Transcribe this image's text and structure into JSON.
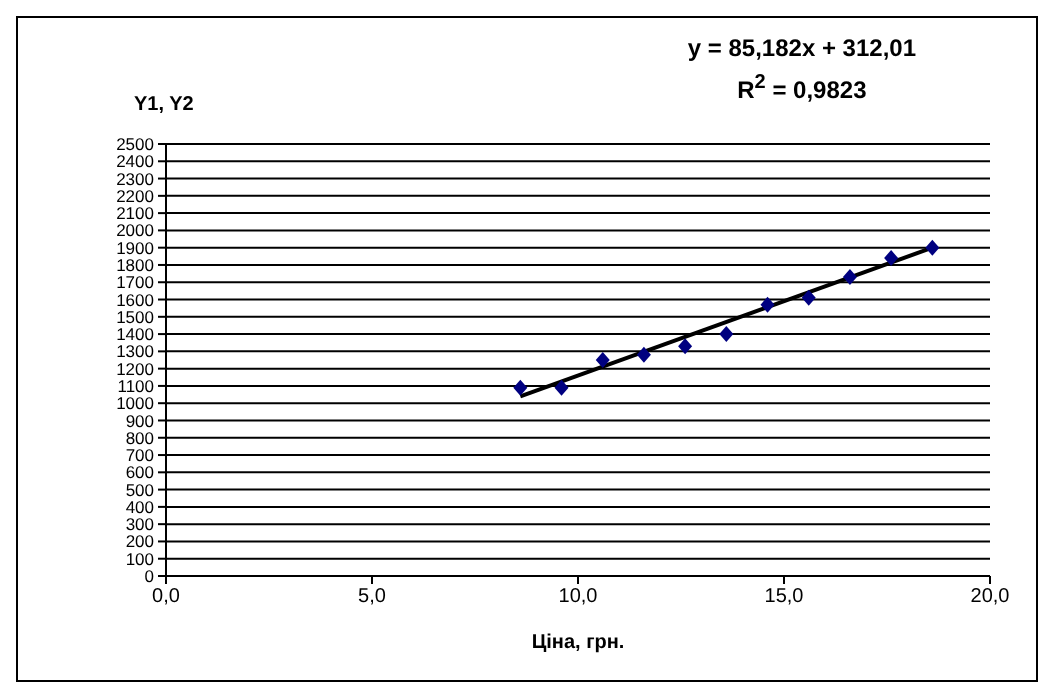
{
  "chart_data": {
    "type": "scatter",
    "ylabel": "Y1, Y2",
    "xlabel": "Ціна, грн.",
    "annotations": [
      "y = 85,182x + 312,01",
      "R$^{2}$ = 0,9823"
    ],
    "series": [
      {
        "color": "#000080",
        "marker": "diamond",
        "x": [
          8.6,
          9.6,
          10.6,
          11.6,
          12.6,
          13.6,
          14.6,
          15.6,
          16.6,
          17.6,
          18.6
        ],
        "values": [
          1090,
          1090,
          1250,
          1280,
          1330,
          1400,
          1570,
          1610,
          1730,
          1840,
          1900
        ]
      },
      {
        "type": "line",
        "color": "#000000",
        "marker": "none",
        "x": [
          8.6,
          18.6
        ],
        "values": [
          1040,
          1900
        ]
      }
    ],
    "xlim": [
      0,
      20
    ],
    "xticks": [
      {
        "value": 0,
        "label": "0,0"
      },
      {
        "value": 5,
        "label": "5,0"
      },
      {
        "value": 10,
        "label": "10,0"
      },
      {
        "value": 15,
        "label": "15,0"
      },
      {
        "value": 20,
        "label": "20,0"
      }
    ],
    "ylim": [
      0,
      2500
    ],
    "yticks": [
      0,
      100,
      200,
      300,
      400,
      500,
      600,
      700,
      800,
      900,
      1000,
      1100,
      1200,
      1300,
      1400,
      1500,
      1600,
      1700,
      1800,
      1900,
      2000,
      2100,
      2200,
      2300,
      2400,
      2500
    ],
    "grid": "y",
    "legend": false
  }
}
